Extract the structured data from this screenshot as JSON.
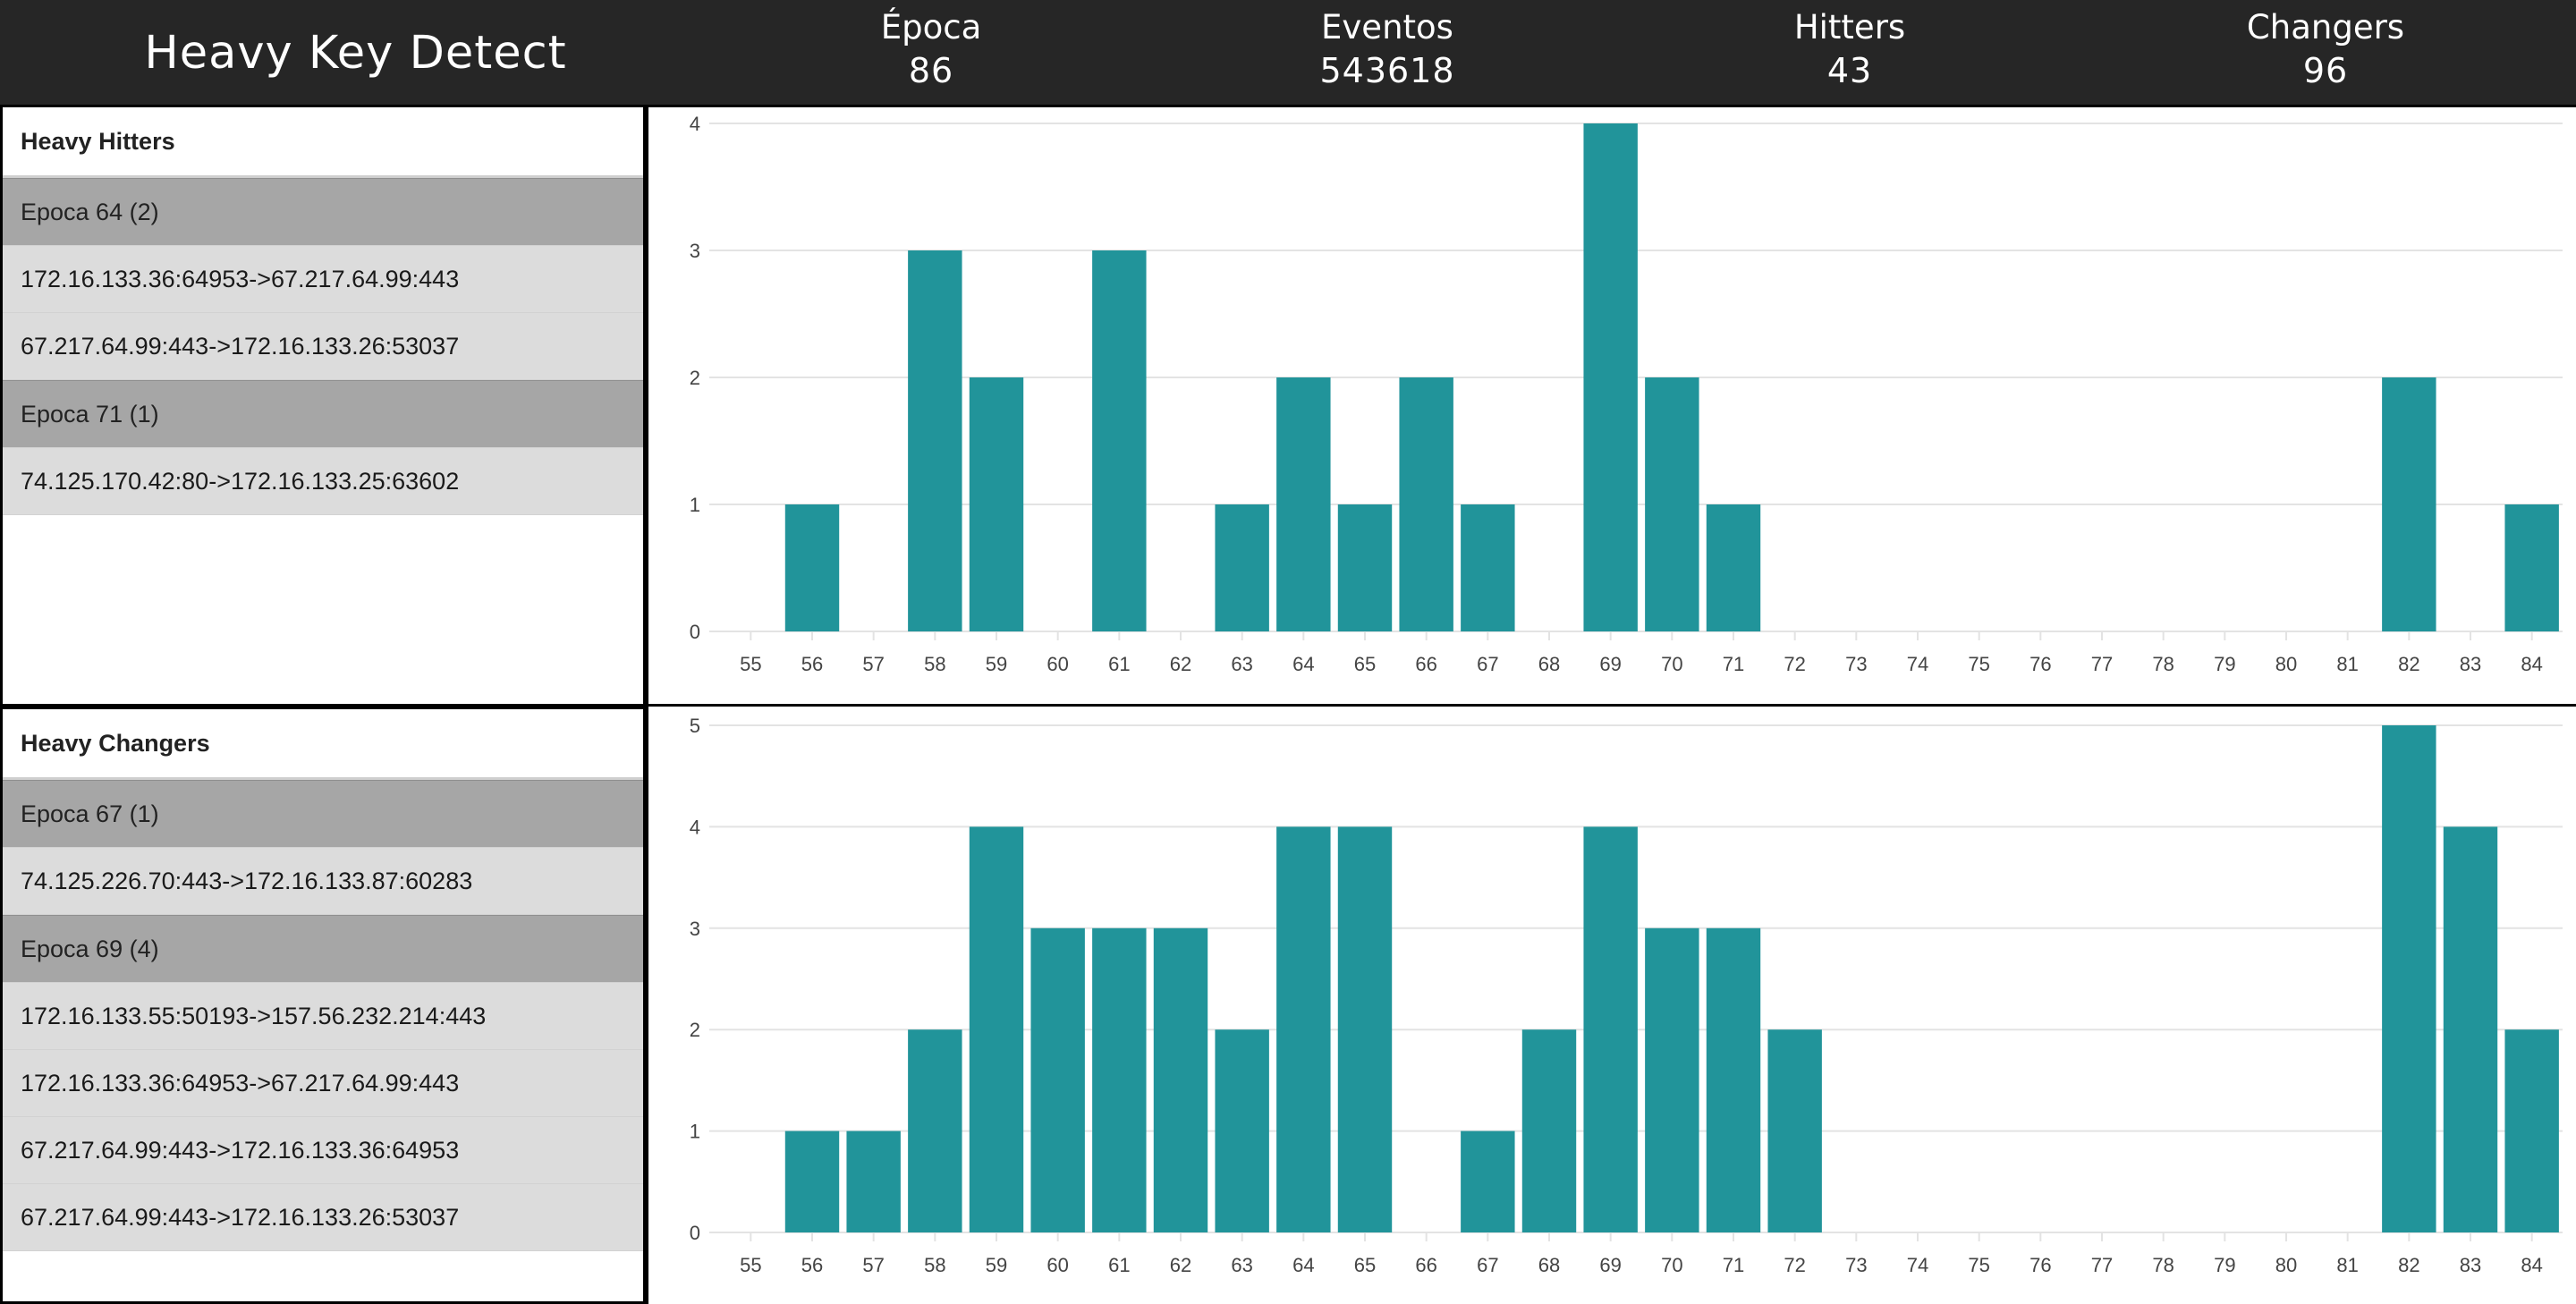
{
  "header": {
    "title": "Heavy Key Detect",
    "stats": [
      {
        "label": "Época",
        "value": "86"
      },
      {
        "label": "Eventos",
        "value": "543618"
      },
      {
        "label": "Hitters",
        "value": "43"
      },
      {
        "label": "Changers",
        "value": "96"
      }
    ]
  },
  "hitters": {
    "title": "Heavy Hitters",
    "rows": [
      {
        "text": "Epoca 64 (2)",
        "group": true
      },
      {
        "text": "172.16.133.36:64953->67.217.64.99:443",
        "group": false
      },
      {
        "text": "67.217.64.99:443->172.16.133.26:53037",
        "group": false
      },
      {
        "text": "Epoca 71 (1)",
        "group": true
      },
      {
        "text": "74.125.170.42:80->172.16.133.25:63602",
        "group": false
      }
    ]
  },
  "changers": {
    "title": "Heavy Changers",
    "rows": [
      {
        "text": "Epoca 67 (1)",
        "group": true
      },
      {
        "text": "74.125.226.70:443->172.16.133.87:60283",
        "group": false
      },
      {
        "text": "Epoca 69 (4)",
        "group": true
      },
      {
        "text": "172.16.133.55:50193->157.56.232.214:443",
        "group": false
      },
      {
        "text": "172.16.133.36:64953->67.217.64.99:443",
        "group": false
      },
      {
        "text": "67.217.64.99:443->172.16.133.36:64953",
        "group": false
      },
      {
        "text": "67.217.64.99:443->172.16.133.26:53037",
        "group": false
      }
    ]
  },
  "chart_data": [
    {
      "type": "bar",
      "categories": [
        "55",
        "56",
        "57",
        "58",
        "59",
        "60",
        "61",
        "62",
        "63",
        "64",
        "65",
        "66",
        "67",
        "68",
        "69",
        "70",
        "71",
        "72",
        "73",
        "74",
        "75",
        "76",
        "77",
        "78",
        "79",
        "80",
        "81",
        "82",
        "83",
        "84"
      ],
      "values": [
        0,
        1,
        0,
        3,
        2,
        0,
        3,
        0,
        1,
        2,
        1,
        2,
        1,
        0,
        4,
        2,
        1,
        0,
        0,
        0,
        0,
        0,
        0,
        0,
        0,
        0,
        0,
        2,
        0,
        1
      ],
      "yticks": [
        0,
        1,
        2,
        3,
        4
      ],
      "ylim": [
        0,
        4
      ],
      "grid": true,
      "color": "#21949a"
    },
    {
      "type": "bar",
      "categories": [
        "55",
        "56",
        "57",
        "58",
        "59",
        "60",
        "61",
        "62",
        "63",
        "64",
        "65",
        "66",
        "67",
        "68",
        "69",
        "70",
        "71",
        "72",
        "73",
        "74",
        "75",
        "76",
        "77",
        "78",
        "79",
        "80",
        "81",
        "82",
        "83",
        "84"
      ],
      "values": [
        0,
        1,
        1,
        2,
        4,
        3,
        3,
        3,
        2,
        4,
        4,
        0,
        1,
        2,
        4,
        3,
        3,
        2,
        0,
        0,
        0,
        0,
        0,
        0,
        0,
        0,
        0,
        5,
        4,
        2
      ],
      "yticks": [
        0,
        1,
        2,
        3,
        4,
        5
      ],
      "ylim": [
        0,
        5
      ],
      "grid": true,
      "color": "#21949a"
    }
  ]
}
